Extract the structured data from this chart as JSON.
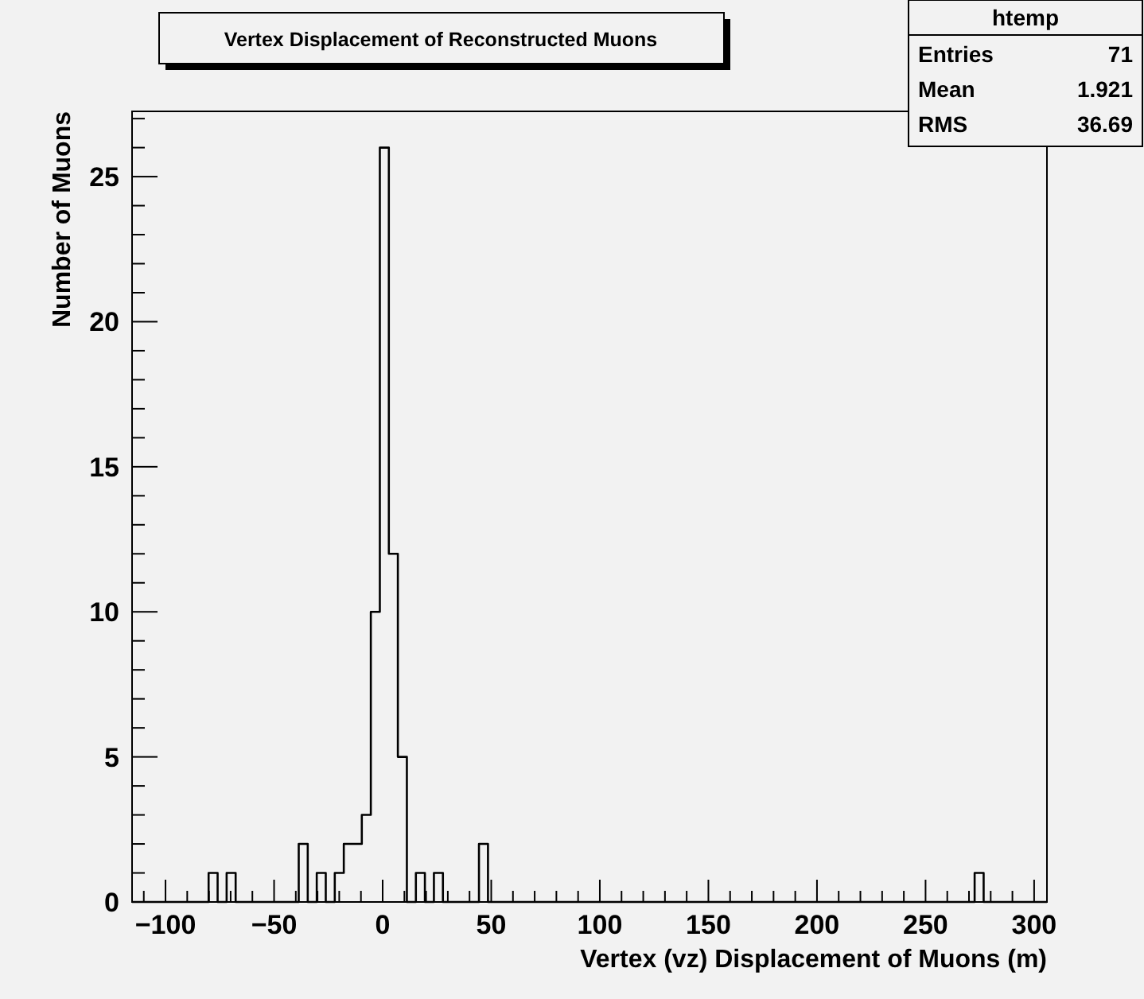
{
  "chart_data": {
    "type": "histogram",
    "title": "Vertex Displacement of Reconstructed Muons",
    "xlabel": "Vertex (vz) Displacement of Muons (m)",
    "ylabel": "Number of Muons",
    "annotations": [
      "htemp",
      "Entries",
      "71",
      "Mean",
      "1.921",
      "RMS",
      "36.69"
    ],
    "bins": [
      -115.4,
      -80.15,
      -76.0,
      -71.85,
      -67.7,
      -38.65,
      -34.5,
      -30.35,
      -26.2,
      -22.05,
      -17.9,
      -13.75,
      -9.6,
      -5.45,
      -1.3,
      2.85,
      7.0,
      11.15,
      15.3,
      19.45,
      23.6,
      27.75,
      44.35,
      48.5,
      272.6,
      276.75,
      305.9
    ],
    "values": [
      0,
      1,
      0,
      1,
      0,
      2,
      0,
      1,
      0,
      1,
      2,
      2,
      3,
      10,
      26,
      12,
      5,
      0,
      1,
      0,
      1,
      0,
      2,
      0,
      1,
      0
    ],
    "color": "#000000",
    "xlim": [
      -115.4,
      305.9
    ],
    "ylim": [
      0,
      27.25
    ],
    "xticks": [
      {
        "value": -110,
        "label": null
      },
      -100,
      {
        "value": -90,
        "label": null
      },
      {
        "value": -80,
        "label": null
      },
      {
        "value": -70,
        "label": null
      },
      {
        "value": -60,
        "label": null
      },
      -50,
      {
        "value": -40,
        "label": null
      },
      {
        "value": -30,
        "label": null
      },
      {
        "value": -20,
        "label": null
      },
      {
        "value": -10,
        "label": null
      },
      0,
      {
        "value": 10,
        "label": null
      },
      {
        "value": 20,
        "label": null
      },
      {
        "value": 30,
        "label": null
      },
      {
        "value": 40,
        "label": null
      },
      50,
      {
        "value": 60,
        "label": null
      },
      {
        "value": 70,
        "label": null
      },
      {
        "value": 80,
        "label": null
      },
      {
        "value": 90,
        "label": null
      },
      100,
      {
        "value": 110,
        "label": null
      },
      {
        "value": 120,
        "label": null
      },
      {
        "value": 130,
        "label": null
      },
      {
        "value": 140,
        "label": null
      },
      150,
      {
        "value": 160,
        "label": null
      },
      {
        "value": 170,
        "label": null
      },
      {
        "value": 180,
        "label": null
      },
      {
        "value": 190,
        "label": null
      },
      200,
      {
        "value": 210,
        "label": null
      },
      {
        "value": 220,
        "label": null
      },
      {
        "value": 230,
        "label": null
      },
      {
        "value": 240,
        "label": null
      },
      250,
      {
        "value": 260,
        "label": null
      },
      {
        "value": 270,
        "label": null
      },
      {
        "value": 280,
        "label": null
      },
      {
        "value": 290,
        "label": null
      },
      300
    ],
    "yticks": [
      0,
      {
        "value": 1,
        "label": null
      },
      {
        "value": 2,
        "label": null
      },
      {
        "value": 3,
        "label": null
      },
      {
        "value": 4,
        "label": null
      },
      5,
      {
        "value": 6,
        "label": null
      },
      {
        "value": 7,
        "label": null
      },
      {
        "value": 8,
        "label": null
      },
      {
        "value": 9,
        "label": null
      },
      10,
      {
        "value": 11,
        "label": null
      },
      {
        "value": 12,
        "label": null
      },
      {
        "value": 13,
        "label": null
      },
      {
        "value": 14,
        "label": null
      },
      15,
      {
        "value": 16,
        "label": null
      },
      {
        "value": 17,
        "label": null
      },
      {
        "value": 18,
        "label": null
      },
      {
        "value": 19,
        "label": null
      },
      20,
      {
        "value": 21,
        "label": null
      },
      {
        "value": 22,
        "label": null
      },
      {
        "value": 23,
        "label": null
      },
      {
        "value": 24,
        "label": null
      },
      25,
      {
        "value": 26,
        "label": null
      },
      {
        "value": 27,
        "label": null
      }
    ]
  }
}
